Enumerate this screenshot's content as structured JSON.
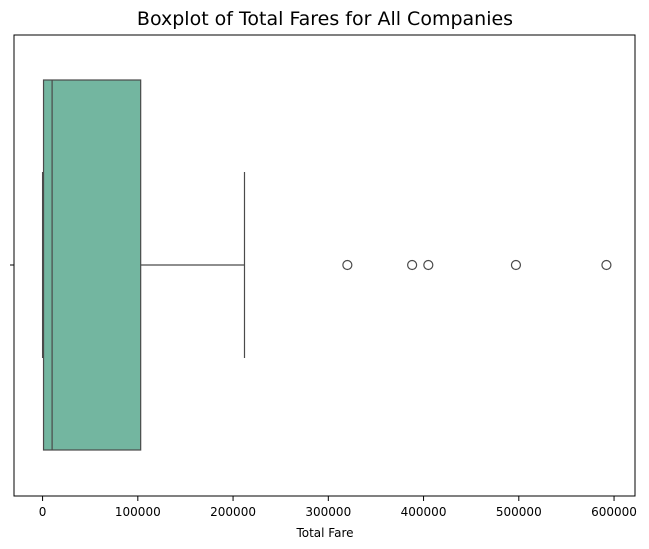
{
  "chart_data": {
    "type": "boxplot",
    "title": "Boxplot of Total Fares for All Companies",
    "xlabel": "Total Fare",
    "ylabel": "",
    "xlim": [
      -30000,
      622000
    ],
    "x_ticks": [
      0,
      100000,
      200000,
      300000,
      400000,
      500000,
      600000
    ],
    "x_tick_labels": [
      "0",
      "100000",
      "200000",
      "300000",
      "400000",
      "500000",
      "600000"
    ],
    "orientation": "horizontal",
    "grid": false,
    "legend": "none",
    "box": {
      "whisker_low": 0,
      "q1": 1000,
      "median": 10000,
      "q3": 103000,
      "whisker_high": 212000,
      "outliers": [
        320000,
        388000,
        405000,
        497000,
        592000
      ]
    },
    "colors": {
      "box_fill": "#73b6a0",
      "line": "#4a4a4a",
      "frame": "#000000"
    }
  }
}
